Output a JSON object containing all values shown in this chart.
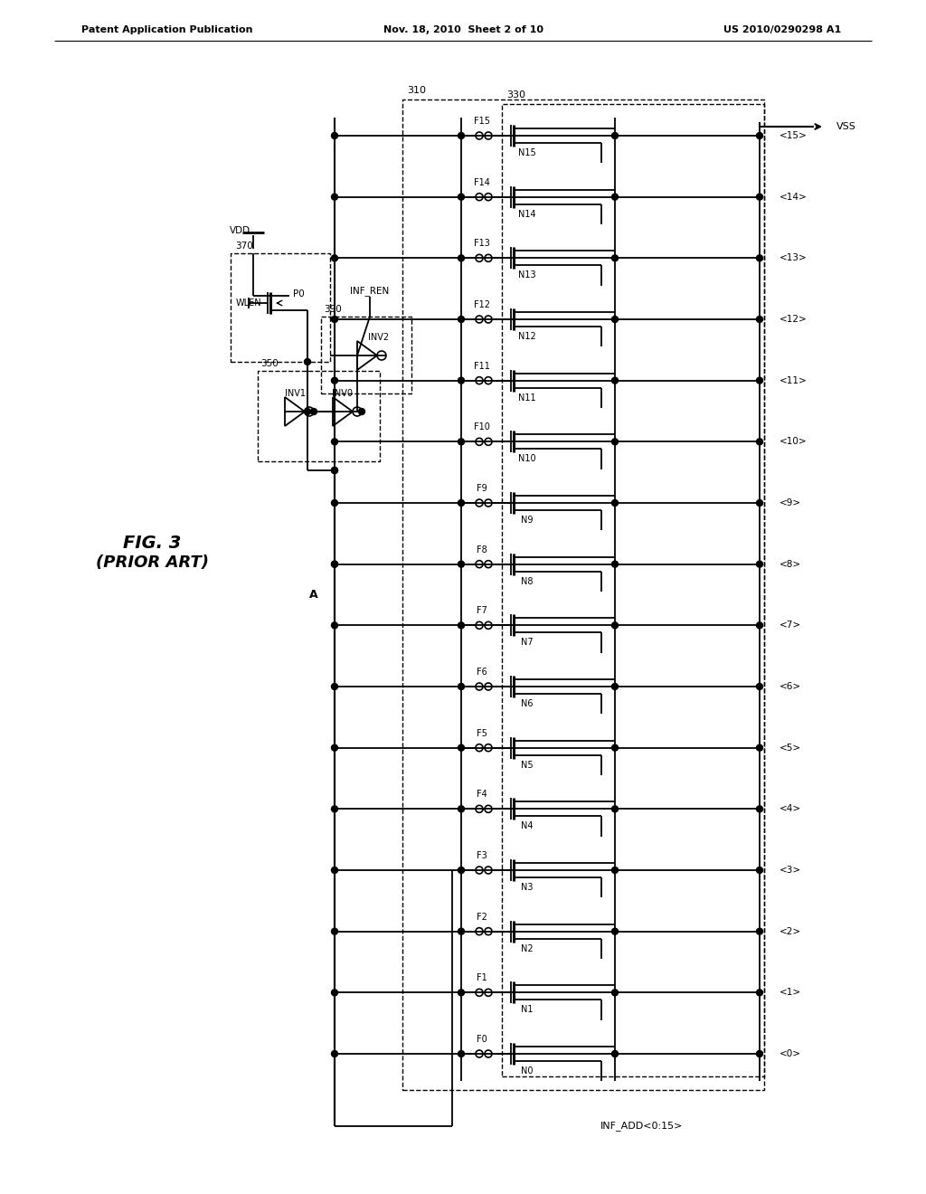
{
  "title_left": "Patent Application Publication",
  "title_mid": "Nov. 18, 2010  Sheet 2 of 10",
  "title_right": "US 2010/0290298 A1",
  "fig_label": "FIG. 3",
  "fig_sublabel": "(PRIOR ART)",
  "background_color": "#ffffff",
  "line_color": "#000000",
  "num_cells": 16,
  "cell_labels_N": [
    "N0",
    "N1",
    "N2",
    "N3",
    "N4",
    "N5",
    "N6",
    "N7",
    "N8",
    "N9",
    "N10",
    "N11",
    "N12",
    "N13",
    "N14",
    "N15"
  ],
  "cell_labels_F": [
    "F0",
    "F1",
    "F2",
    "F3",
    "F4",
    "F5",
    "F6",
    "F7",
    "F8",
    "F9",
    "F10",
    "F11",
    "F12",
    "F13",
    "F14",
    "F15"
  ],
  "cell_labels_addr": [
    "<0>",
    "<1>",
    "<2>",
    "<3>",
    "<4>",
    "<5>",
    "<6>",
    "<7>",
    "<8>",
    "<9>",
    "<10>",
    "<11>",
    "<12>",
    "<13>",
    "<14>",
    "<15>"
  ],
  "label_310": "310",
  "label_330": "330",
  "label_350": "350",
  "label_370": "370",
  "label_390": "390",
  "label_A": "A",
  "label_WLEN": "WLEN",
  "label_VDD": "VDD",
  "label_VSS": "VSS",
  "label_INF_REN": "INF_REN",
  "label_INV1": "INV1",
  "label_INV0": "INV0",
  "label_INV2": "INV2",
  "label_P0": "P0",
  "label_INF_ADD": "INF_ADD<0:15>"
}
